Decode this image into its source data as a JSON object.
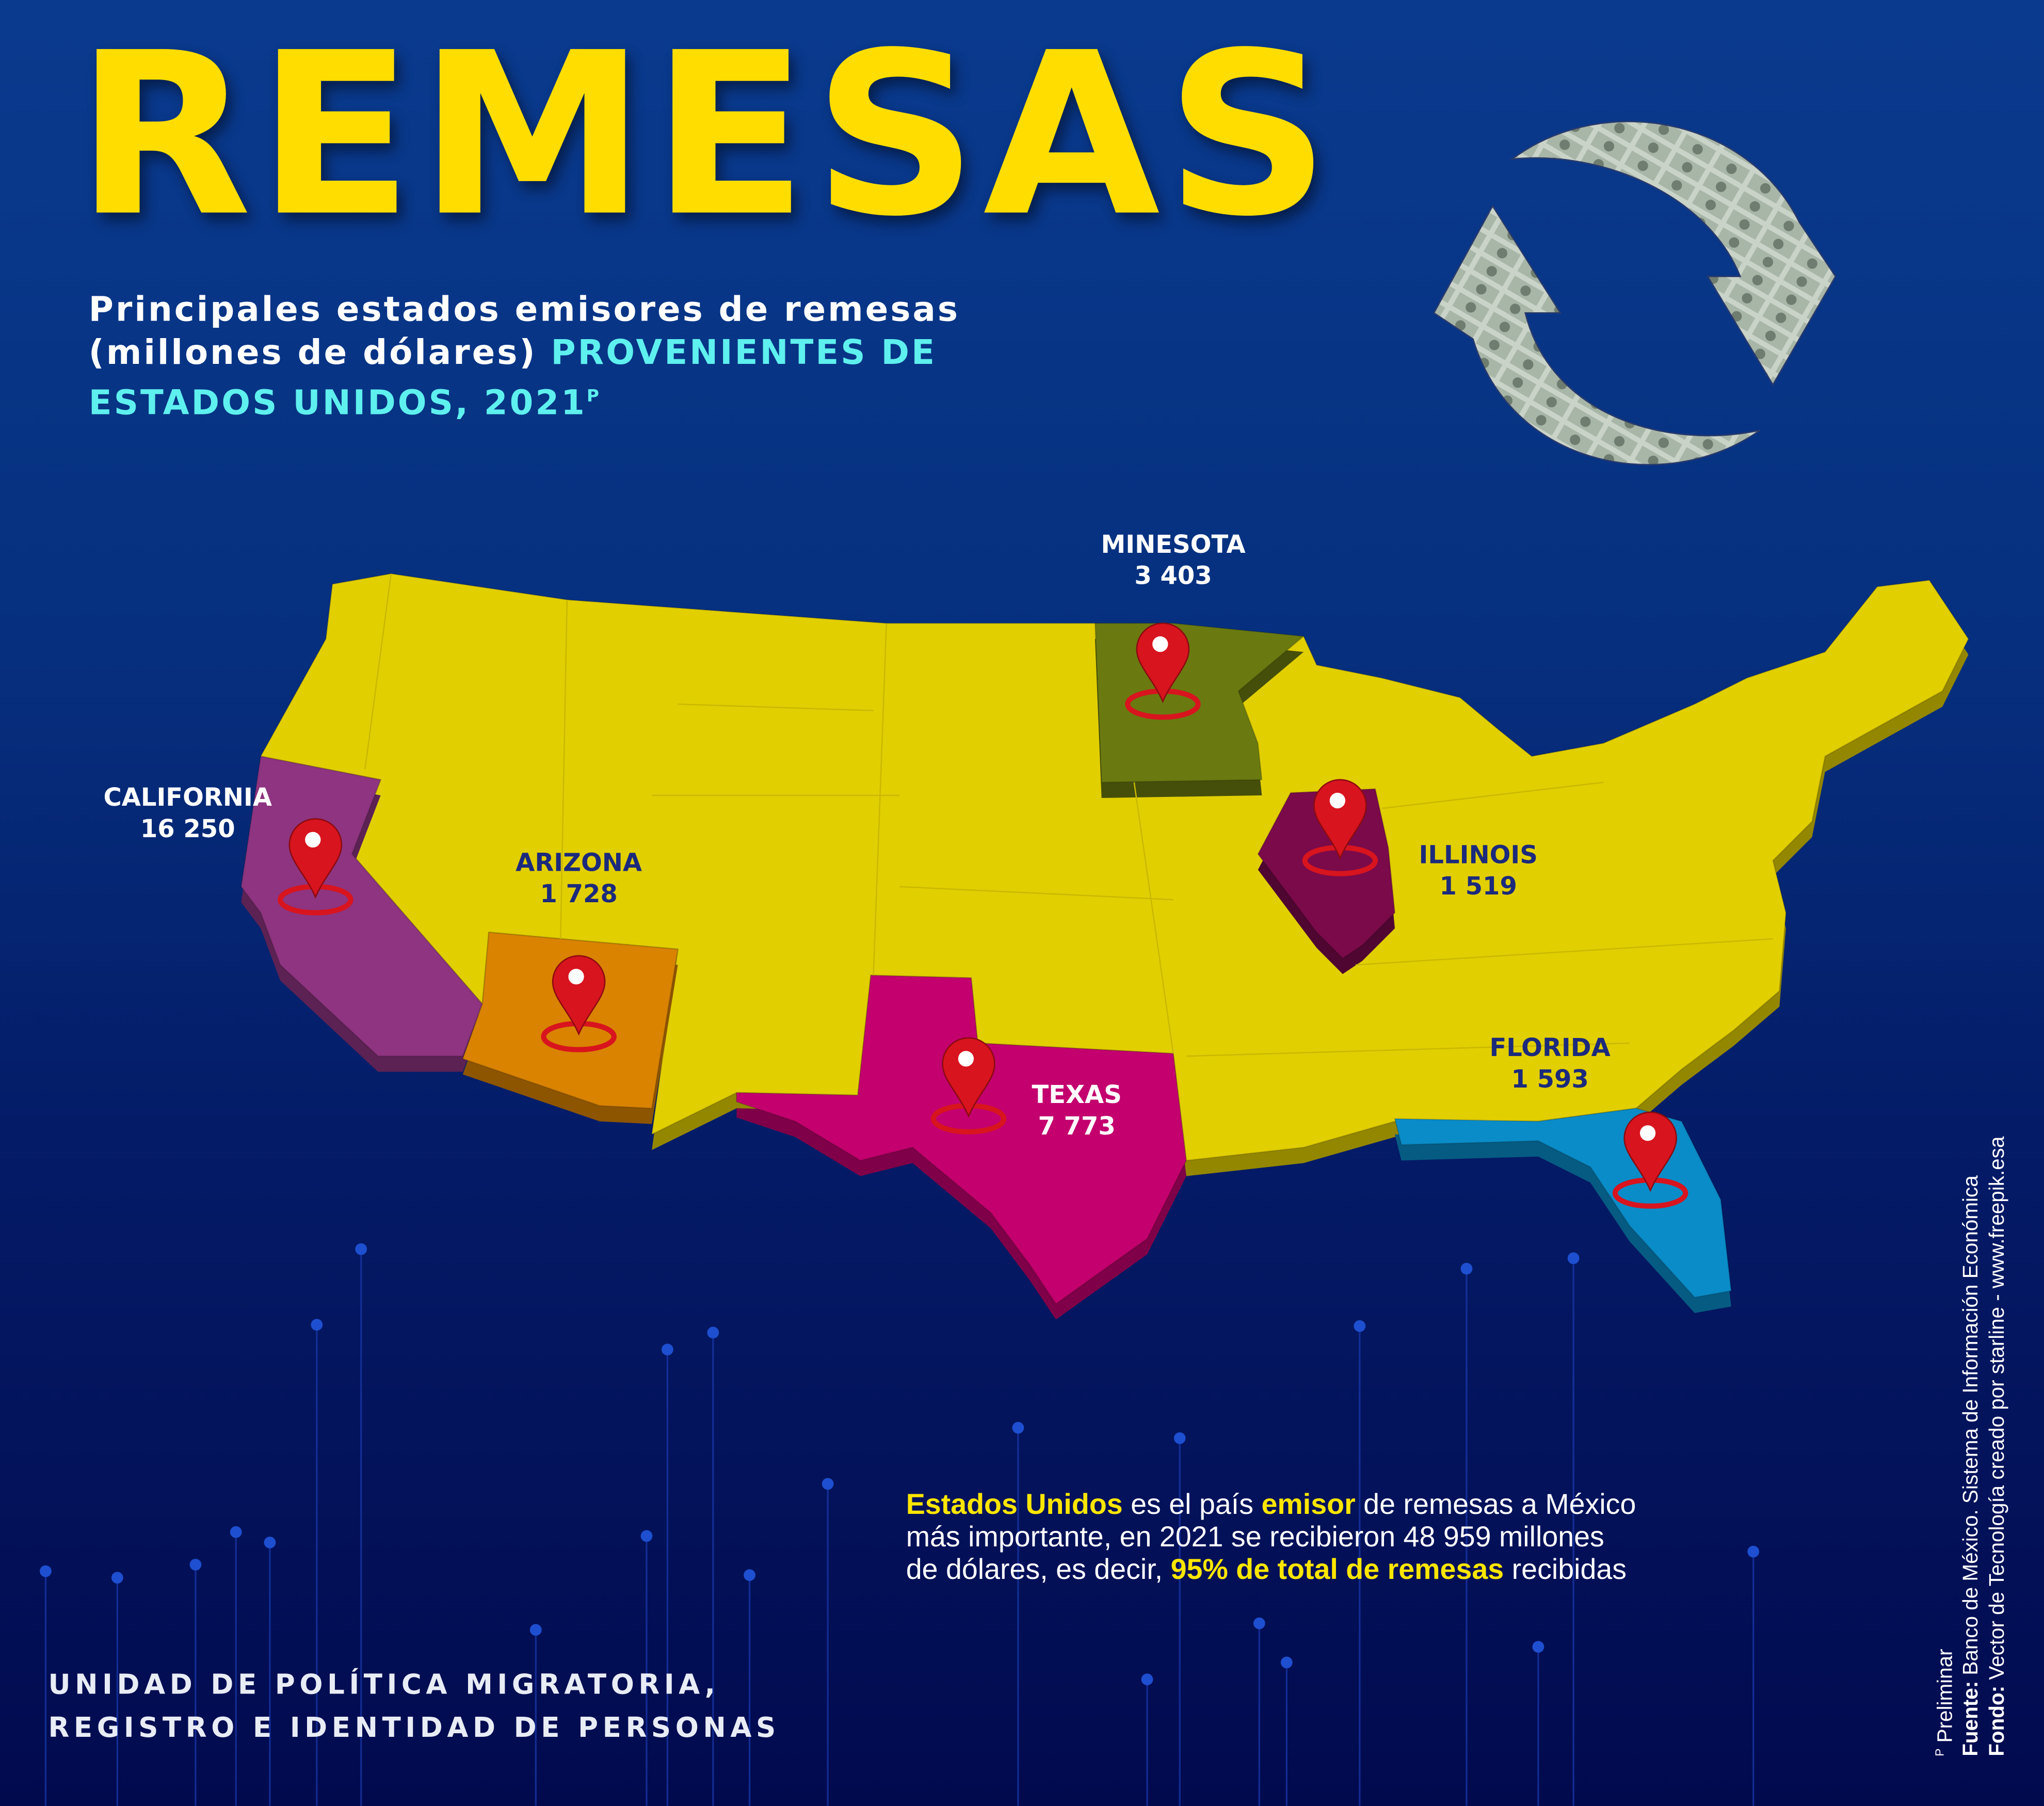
{
  "title": "REMESAS",
  "subtitle": {
    "line1": "Principales estados emisores de remesas",
    "line2_white": "(millones de dólares)",
    "line2_cyan": "PROVENIENTES DE",
    "line3_cyan": "ESTADOS UNIDOS, 2021",
    "superscript": "P"
  },
  "colors": {
    "title": "#FFDD00",
    "highlight": "#5EF0EE",
    "map_base": "#E2CF00",
    "california": "#8E3480",
    "arizona": "#D98300",
    "texas": "#C3006E",
    "minnesota": "#6A7A10",
    "illinois": "#7A0A4A",
    "florida": "#0A8CC8",
    "pin": "#D8141E"
  },
  "map": {
    "states": [
      {
        "name": "CALIFORNIA",
        "value": "16 250"
      },
      {
        "name": "ARIZONA",
        "value": "1 728"
      },
      {
        "name": "MINESOTA",
        "value": "3 403"
      },
      {
        "name": "ILLINOIS",
        "value": "1 519"
      },
      {
        "name": "TEXAS",
        "value": "7 773"
      },
      {
        "name": "FLORIDA",
        "value": "1 593"
      }
    ]
  },
  "icons": {
    "exchange": "circular-arrows-money-icon",
    "pin": "map-pin-icon"
  },
  "paragraph": {
    "b1": "Estados Unidos",
    "t1": " es el país ",
    "b2": "emisor",
    "t2": " de remesas a México",
    "t3": "más importante, en 2021 se recibieron 48 959 millones",
    "t4": "de dólares, es decir, ",
    "b3": "95% de total de remesas",
    "t5": " recibidas"
  },
  "footer": {
    "line1": "UNIDAD DE POLÍTICA MIGRATORIA,",
    "line2": "REGISTRO E IDENTIDAD DE PERSONAS"
  },
  "notes": {
    "sup": "P",
    "preliminar": " Preliminar",
    "fuente_label": "Fuente:",
    "fuente": " Banco de México. Sistema de Información Económica",
    "fondo_label": "Fondo:",
    "fondo": " Vector de Tecnología creado por starline - www.freepik.esa"
  }
}
